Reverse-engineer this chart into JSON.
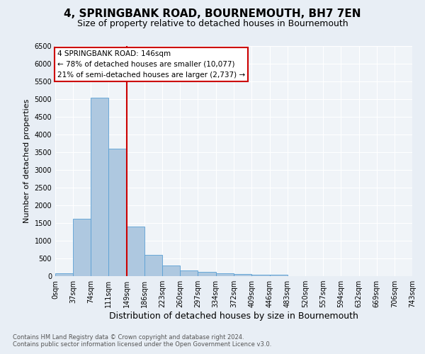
{
  "title": "4, SPRINGBANK ROAD, BOURNEMOUTH, BH7 7EN",
  "subtitle": "Size of property relative to detached houses in Bournemouth",
  "xlabel": "Distribution of detached houses by size in Bournemouth",
  "ylabel": "Number of detached properties",
  "footnote1": "Contains HM Land Registry data © Crown copyright and database right 2024.",
  "footnote2": "Contains public sector information licensed under the Open Government Licence v3.0.",
  "bar_edges": [
    0,
    37,
    74,
    111,
    149,
    186,
    223,
    260,
    297,
    334,
    372,
    409,
    446,
    483,
    520,
    557,
    594,
    632,
    669,
    706,
    743
  ],
  "bar_heights": [
    75,
    1620,
    5050,
    3600,
    1400,
    600,
    310,
    155,
    120,
    80,
    55,
    45,
    40,
    0,
    0,
    0,
    0,
    0,
    0,
    0
  ],
  "bar_color": "#aec8e0",
  "bar_edge_color": "#5a9fd4",
  "vline_x": 149,
  "vline_color": "#cc0000",
  "ylim": [
    0,
    6500
  ],
  "yticks": [
    0,
    500,
    1000,
    1500,
    2000,
    2500,
    3000,
    3500,
    4000,
    4500,
    5000,
    5500,
    6000,
    6500
  ],
  "annotation_text": "4 SPRINGBANK ROAD: 146sqm\n← 78% of detached houses are smaller (10,077)\n21% of semi-detached houses are larger (2,737) →",
  "annotation_box_color": "#ffffff",
  "annotation_box_edge": "#cc0000",
  "bg_color": "#e8eef5",
  "plot_bg_color": "#f0f4f8",
  "title_fontsize": 11,
  "subtitle_fontsize": 9,
  "tick_label_fontsize": 7,
  "ylabel_fontsize": 8,
  "xlabel_fontsize": 9
}
